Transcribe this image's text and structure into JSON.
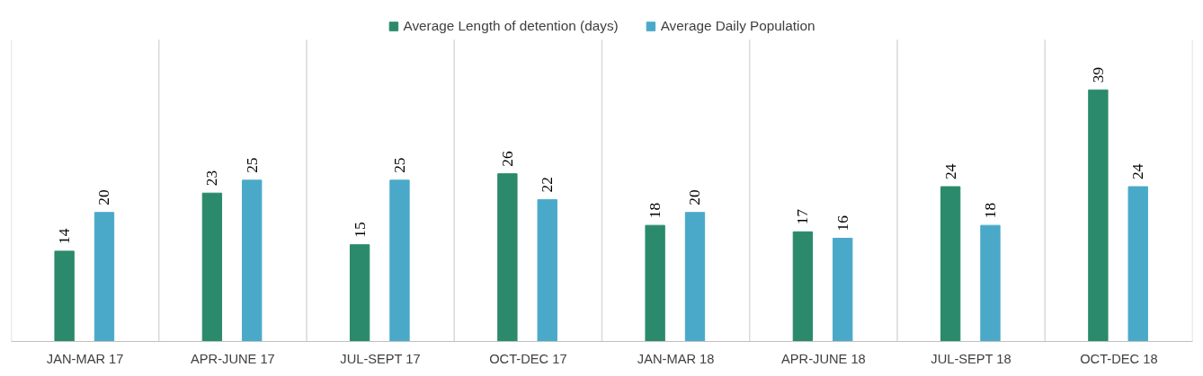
{
  "chart_data": {
    "type": "bar",
    "categories": [
      "JAN-MAR 17",
      "APR-JUNE 17",
      "JUL-SEPT 17",
      "OCT-DEC 17",
      "JAN-MAR 18",
      "APR-JUNE 18",
      "JUL-SEPT 18",
      "OCT-DEC 18"
    ],
    "series": [
      {
        "name": "Average Length of detention (days)",
        "color": "#2a8a6b",
        "values": [
          14,
          23,
          15,
          26,
          18,
          17,
          24,
          39
        ]
      },
      {
        "name": "Average Daily Population",
        "color": "#4aa9c9",
        "values": [
          20,
          25,
          25,
          22,
          20,
          16,
          18,
          24
        ]
      }
    ],
    "data_labels": true,
    "grid": "x",
    "legend": "top",
    "tick_labels": "x"
  }
}
